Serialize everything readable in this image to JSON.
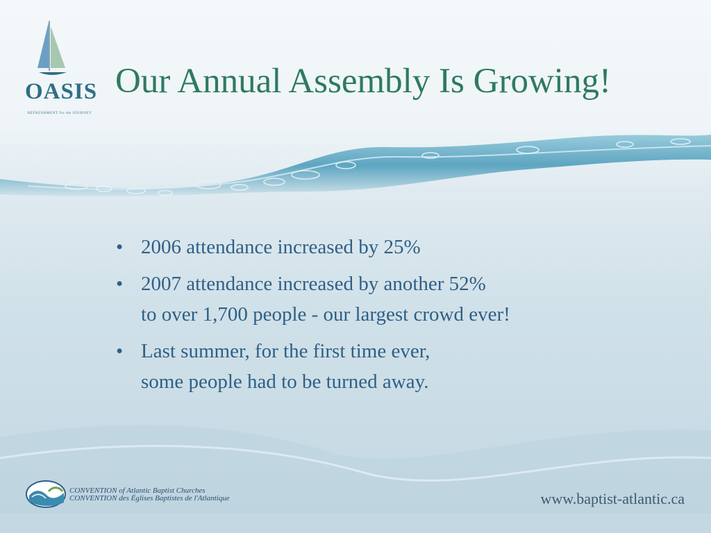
{
  "logo": {
    "wordmark": "OASIS",
    "tagline": "REFRESHMENT for the JOURNEY",
    "icon": "sailboat-icon"
  },
  "title": "Our Annual Assembly Is Growing!",
  "bullets": [
    {
      "lines": [
        "2006 attendance increased by 25%"
      ]
    },
    {
      "lines": [
        "2007 attendance increased by another 52%",
        "to over 1,700 people - our largest crowd ever!"
      ]
    },
    {
      "lines": [
        "Last summer, for the first time ever,",
        "some people had to be turned away."
      ]
    }
  ],
  "bullet_marker": "•",
  "footer": {
    "org_line1": "CONVENTION of Atlantic Baptist Churches",
    "org_line2": "CONVENTION des Églises Baptistes de l'Atlantique",
    "url": "www.baptist-atlantic.ca"
  },
  "colors": {
    "title": "#2e7a62",
    "bullet_text": "#2f5f86",
    "water": "#5fa7c2"
  }
}
